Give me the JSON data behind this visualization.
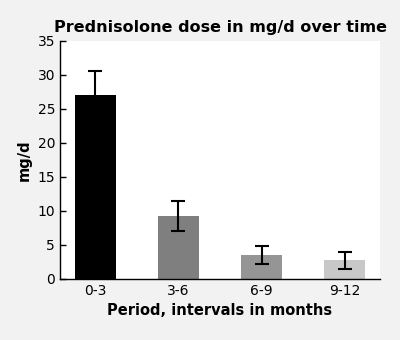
{
  "title": "Prednisolone dose in mg/d over time",
  "xlabel": "Period, intervals in months",
  "ylabel": "mg/d",
  "categories": [
    "0-3",
    "3-6",
    "6-9",
    "9-12"
  ],
  "values": [
    27.0,
    9.3,
    3.5,
    2.7
  ],
  "errors_upper": [
    3.5,
    2.2,
    1.3,
    1.2
  ],
  "errors_lower": [
    3.5,
    2.2,
    1.3,
    1.2
  ],
  "bar_colors": [
    "#000000",
    "#7f7f7f",
    "#959595",
    "#c8c8c8"
  ],
  "ylim": [
    0,
    35
  ],
  "yticks": [
    0,
    5,
    10,
    15,
    20,
    25,
    30,
    35
  ],
  "figure_facecolor": "#f2f2f2",
  "axes_facecolor": "#ffffff",
  "bar_width": 0.5,
  "title_fontsize": 11.5,
  "axis_label_fontsize": 10.5,
  "tick_fontsize": 10
}
